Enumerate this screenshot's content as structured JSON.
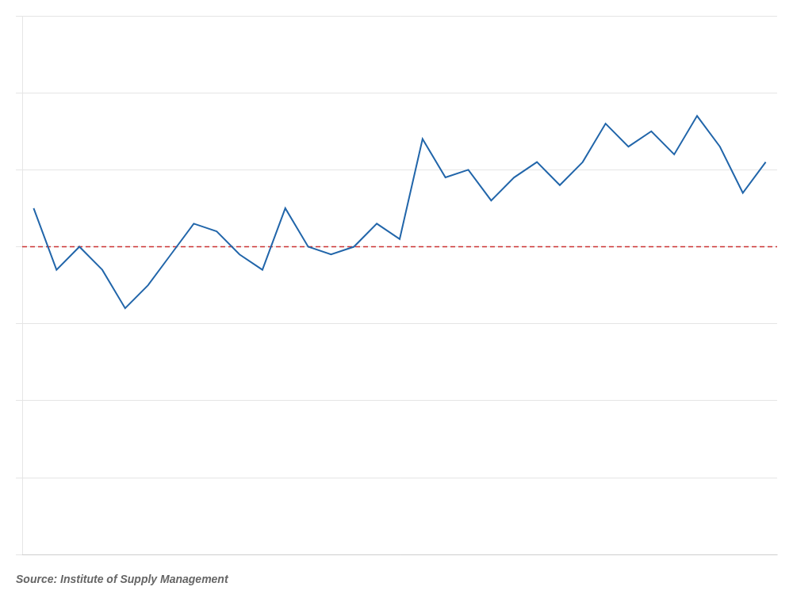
{
  "chart_data": {
    "type": "line",
    "categories": [
      null,
      null,
      null,
      null,
      null,
      null,
      null,
      null,
      null,
      null,
      null,
      null,
      null,
      null,
      null,
      null,
      null,
      null,
      null,
      null,
      null,
      null,
      null,
      null,
      null,
      null,
      null,
      null,
      null,
      null,
      null,
      null,
      null
    ],
    "values": [
      52.5,
      48.5,
      50.0,
      48.5,
      46.0,
      47.5,
      49.5,
      51.5,
      51.0,
      49.5,
      48.5,
      52.5,
      50.0,
      49.5,
      50.0,
      51.5,
      50.5,
      57.0,
      54.5,
      55.0,
      53.0,
      54.5,
      55.5,
      54.0,
      55.5,
      58.0,
      56.5,
      57.5,
      56.0,
      58.5,
      56.5,
      53.5,
      55.5
    ],
    "color": "#2266AA",
    "reference_line": {
      "value": 50.0,
      "color": "#CC3333",
      "line_style": "dashed"
    },
    "ylim": [
      30,
      65
    ],
    "yticks": [
      30,
      35,
      40,
      45,
      50,
      55,
      60,
      65
    ],
    "grid": true,
    "tick_labels": false,
    "annotations": [
      "Source: Institute of Supply Management"
    ]
  }
}
